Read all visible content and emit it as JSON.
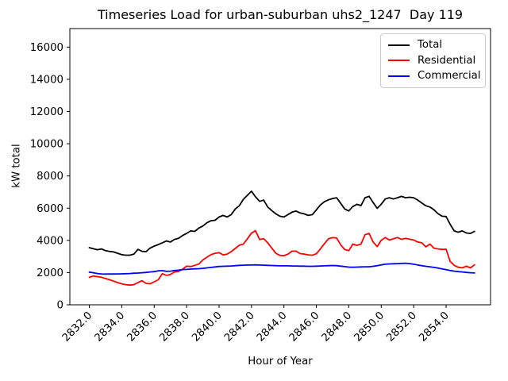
{
  "chart_data": {
    "type": "line",
    "title": "Timeseries Load for urban-suburban uhs2_1247  Day 119",
    "xlabel": "Hour of Year",
    "ylabel": "kW total",
    "grid": false,
    "legend_position": "upper right",
    "xlim": [
      2830.8,
      2856.74
    ],
    "ylim": [
      0,
      17150
    ],
    "yticks": [
      0,
      2000,
      4000,
      6000,
      8000,
      10000,
      12000,
      14000,
      16000
    ],
    "xtick_labels": [
      "2832.0",
      "2834.0",
      "2836.0",
      "2838.0",
      "2840.0",
      "2842.0",
      "2844.0",
      "2846.0",
      "2848.0",
      "2850.0",
      "2852.0",
      "2854.0"
    ],
    "x": [
      2832.0,
      2832.25,
      2832.5,
      2832.75,
      2833.0,
      2833.25,
      2833.5,
      2833.75,
      2834.0,
      2834.25,
      2834.5,
      2834.75,
      2835.0,
      2835.25,
      2835.5,
      2835.75,
      2836.0,
      2836.25,
      2836.5,
      2836.75,
      2837.0,
      2837.25,
      2837.5,
      2837.75,
      2838.0,
      2838.25,
      2838.5,
      2838.75,
      2839.0,
      2839.25,
      2839.5,
      2839.75,
      2840.0,
      2840.25,
      2840.5,
      2840.75,
      2841.0,
      2841.25,
      2841.5,
      2841.75,
      2842.0,
      2842.25,
      2842.5,
      2842.75,
      2843.0,
      2843.25,
      2843.5,
      2843.75,
      2844.0,
      2844.25,
      2844.5,
      2844.75,
      2845.0,
      2845.25,
      2845.5,
      2845.75,
      2846.0,
      2846.25,
      2846.5,
      2846.75,
      2847.0,
      2847.25,
      2847.5,
      2847.75,
      2848.0,
      2848.25,
      2848.5,
      2848.75,
      2849.0,
      2849.25,
      2849.5,
      2849.75,
      2850.0,
      2850.25,
      2850.5,
      2850.75,
      2851.0,
      2851.25,
      2851.5,
      2851.75,
      2852.0,
      2852.25,
      2852.5,
      2852.75,
      2853.0,
      2853.25,
      2853.5,
      2853.75,
      2854.0,
      2854.25,
      2854.5,
      2854.75,
      2855.0,
      2855.25,
      2855.5,
      2855.75
    ],
    "series": [
      {
        "name": "Total",
        "color": "#000000",
        "values": [
          3550,
          3480,
          3420,
          3470,
          3360,
          3310,
          3280,
          3200,
          3110,
          3080,
          3080,
          3150,
          3440,
          3320,
          3300,
          3520,
          3640,
          3740,
          3850,
          3960,
          3900,
          4060,
          4130,
          4300,
          4430,
          4590,
          4560,
          4760,
          4890,
          5090,
          5220,
          5250,
          5450,
          5550,
          5450,
          5600,
          5950,
          6150,
          6550,
          6800,
          7050,
          6700,
          6420,
          6500,
          6070,
          5850,
          5650,
          5500,
          5450,
          5600,
          5750,
          5820,
          5700,
          5650,
          5550,
          5600,
          5900,
          6200,
          6400,
          6520,
          6600,
          6650,
          6300,
          5950,
          5830,
          6100,
          6240,
          6160,
          6650,
          6730,
          6350,
          5990,
          6250,
          6570,
          6650,
          6570,
          6650,
          6730,
          6650,
          6680,
          6650,
          6500,
          6320,
          6150,
          6070,
          5900,
          5660,
          5500,
          5480,
          5000,
          4590,
          4510,
          4590,
          4460,
          4430,
          4560
        ]
      },
      {
        "name": "Residential",
        "color": "#ff0000",
        "values": [
          1700,
          1790,
          1750,
          1710,
          1630,
          1550,
          1470,
          1380,
          1300,
          1250,
          1220,
          1250,
          1380,
          1500,
          1330,
          1300,
          1430,
          1550,
          1930,
          1830,
          1880,
          2040,
          2070,
          2210,
          2400,
          2370,
          2450,
          2530,
          2780,
          2950,
          3110,
          3200,
          3240,
          3100,
          3150,
          3300,
          3500,
          3700,
          3770,
          4100,
          4450,
          4600,
          4050,
          4100,
          3850,
          3520,
          3200,
          3070,
          3050,
          3150,
          3330,
          3330,
          3180,
          3150,
          3100,
          3080,
          3170,
          3480,
          3800,
          4100,
          4170,
          4150,
          3730,
          3430,
          3360,
          3770,
          3690,
          3770,
          4350,
          4430,
          3900,
          3610,
          4000,
          4180,
          4020,
          4100,
          4180,
          4060,
          4130,
          4070,
          4020,
          3900,
          3850,
          3600,
          3770,
          3520,
          3470,
          3440,
          3450,
          2700,
          2450,
          2330,
          2290,
          2400,
          2290,
          2480
        ]
      },
      {
        "name": "Commercial",
        "color": "#0000ff",
        "values": [
          2030,
          1990,
          1940,
          1915,
          1905,
          1910,
          1910,
          1915,
          1920,
          1930,
          1940,
          1960,
          1970,
          1990,
          2010,
          2040,
          2060,
          2110,
          2120,
          2080,
          2090,
          2130,
          2150,
          2190,
          2200,
          2220,
          2230,
          2240,
          2260,
          2290,
          2320,
          2350,
          2380,
          2390,
          2400,
          2410,
          2430,
          2450,
          2460,
          2470,
          2470,
          2480,
          2470,
          2460,
          2450,
          2440,
          2430,
          2420,
          2420,
          2420,
          2410,
          2410,
          2400,
          2400,
          2390,
          2390,
          2400,
          2410,
          2420,
          2430,
          2440,
          2430,
          2400,
          2370,
          2340,
          2330,
          2340,
          2350,
          2360,
          2360,
          2390,
          2430,
          2480,
          2520,
          2540,
          2550,
          2560,
          2570,
          2580,
          2560,
          2520,
          2470,
          2430,
          2390,
          2360,
          2320,
          2280,
          2230,
          2180,
          2130,
          2090,
          2060,
          2040,
          2010,
          1990,
          1975
        ]
      }
    ]
  }
}
